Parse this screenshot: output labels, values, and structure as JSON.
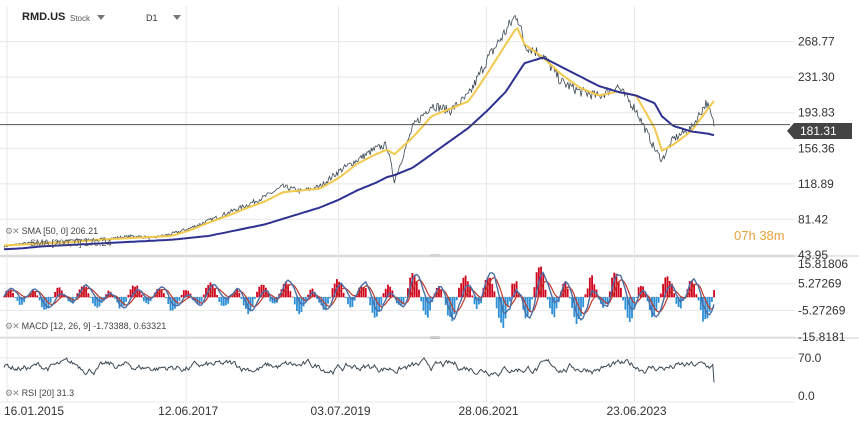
{
  "header": {
    "symbol": "RMD.US",
    "type": "Stock",
    "timeframe": "D1"
  },
  "current_price": "181.31",
  "timer": {
    "hours": "07",
    "h_unit": "h",
    "minutes": "38",
    "m_unit": "m"
  },
  "colors": {
    "price": "#3d4a55",
    "sma_fast": "#f2c94c",
    "sma_slow": "#2e3192",
    "macd_line": "#4a6fa5",
    "signal_line": "#c0392b",
    "hist_pos": "#d0021b",
    "hist_neg": "#2d8fd6",
    "rsi": "#3d4a55",
    "grid": "#e8e8e8"
  },
  "indicators": {
    "sma": "SMA [50, 0]  206.21",
    "sma2": "SMA [200, 0]  170.24",
    "macd": "MACD [12, 26, 9]  -1.73388,  0.63321",
    "rsi": "RSI [20]  31.3"
  },
  "chart_data": [
    {
      "type": "line",
      "panel": "price",
      "y_ticks": [
        "268.77",
        "231.30",
        "193.83",
        "156.36",
        "118.89",
        "81.42",
        "43.95"
      ],
      "ylim": [
        43.95,
        306.24
      ],
      "x_ticks": [
        "16.01.2015",
        "12.06.2017",
        "03.07.2019",
        "28.06.2021",
        "23.06.2023"
      ],
      "x": [
        2015.0,
        2015.25,
        2015.5,
        2015.75,
        2016.0,
        2016.25,
        2016.5,
        2016.75,
        2017.0,
        2017.25,
        2017.5,
        2017.75,
        2018.0,
        2018.25,
        2018.5,
        2018.75,
        2019.0,
        2019.25,
        2019.5,
        2019.75,
        2020.0,
        2020.15,
        2020.25,
        2020.5,
        2020.75,
        2021.0,
        2021.25,
        2021.5,
        2021.75,
        2021.9,
        2022.0,
        2022.25,
        2022.5,
        2022.75,
        2023.0,
        2023.25,
        2023.5,
        2023.75,
        2023.85,
        2024.0,
        2024.25,
        2024.45,
        2024.55
      ],
      "series": [
        {
          "values": [
            53,
            56,
            57,
            58,
            60,
            60,
            62,
            64,
            62,
            66,
            72,
            80,
            88,
            96,
            105,
            116,
            111,
            116,
            132,
            144,
            156,
            160,
            122,
            179,
            202,
            196,
            212,
            250,
            280,
            298,
            266,
            254,
            226,
            216,
            211,
            222,
            197,
            156,
            144,
            166,
            178,
            205,
            181.31
          ]
        },
        {
          "values": [
            54,
            55,
            56,
            57,
            58,
            60,
            61,
            62,
            63,
            64,
            70,
            78,
            85,
            93,
            100,
            110,
            112,
            114,
            125,
            140,
            150,
            155,
            150,
            168,
            190,
            198,
            206,
            235,
            266,
            284,
            266,
            252,
            234,
            220,
            212,
            216,
            212,
            178,
            154,
            160,
            175,
            196,
            206.21
          ]
        },
        {
          "values": [
            50,
            51,
            53,
            54,
            55,
            56,
            57,
            58,
            59,
            60,
            62,
            64,
            68,
            72,
            76,
            82,
            88,
            94,
            102,
            112,
            120,
            126,
            128,
            136,
            150,
            164,
            178,
            196,
            216,
            234,
            246,
            252,
            242,
            232,
            222,
            216,
            212,
            204,
            190,
            180,
            174,
            172,
            170.24
          ]
        }
      ]
    },
    {
      "type": "bar",
      "panel": "macd",
      "y_ticks": [
        "15.81806",
        "5.27269",
        "-5.27269",
        "-15.8181"
      ],
      "ylim": [
        -15.8181,
        15.81806
      ]
    },
    {
      "type": "line",
      "panel": "rsi",
      "y_ticks": [
        "70.0",
        "0.0"
      ],
      "ylim": [
        0,
        100
      ]
    }
  ]
}
